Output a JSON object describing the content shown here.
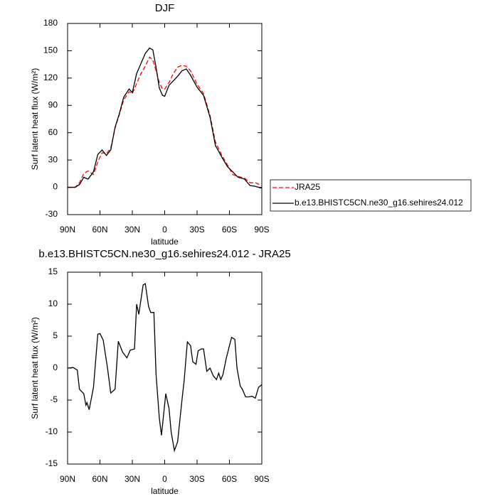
{
  "chart_data": [
    {
      "type": "line",
      "title": "DJF",
      "x_label": "latitude",
      "y_label": "Surf latent heat flux (W/m²)",
      "x": [
        90,
        83,
        79,
        75,
        71,
        66,
        62,
        58,
        54,
        50,
        46,
        42,
        38,
        33,
        30,
        26,
        22,
        18,
        14,
        11,
        8,
        5,
        2,
        0,
        -4,
        -8,
        -12,
        -16,
        -20,
        -24,
        -30,
        -36,
        -42,
        -47,
        -53,
        -58,
        -63,
        -68,
        -74,
        -79,
        -84,
        -90
      ],
      "xlim": [
        90,
        -90
      ],
      "xticks": [
        {
          "value": 90,
          "label": "90N"
        },
        {
          "value": 60,
          "label": "60N"
        },
        {
          "value": 30,
          "label": "30N"
        },
        0,
        {
          "value": -30,
          "label": "30S"
        },
        {
          "value": -60,
          "label": "60S"
        },
        {
          "value": -90,
          "label": "90S"
        }
      ],
      "ylim": [
        -30,
        180
      ],
      "yticks": [
        -30,
        0,
        30,
        60,
        90,
        120,
        150,
        180
      ],
      "legend": "outside-right",
      "series": [
        {
          "name": "JRA25",
          "color": "#ff0000",
          "dash": true,
          "values": [
            0,
            0,
            5,
            15,
            18,
            14,
            28,
            38,
            37,
            43,
            65,
            80,
            96,
            105,
            103,
            114,
            125,
            133,
            143,
            140,
            128,
            115,
            108,
            108,
            115,
            125,
            132,
            134,
            133,
            128,
            113,
            103,
            79,
            50,
            35,
            25,
            14,
            12,
            10,
            5,
            5,
            2
          ]
        },
        {
          "name": "b.e13.BHISTC5CN.ne30_g16.sehires24.012",
          "color": "#000000",
          "dash": false,
          "values": [
            0,
            0,
            3,
            11,
            9,
            17,
            36,
            41,
            35,
            41,
            66,
            81,
            99,
            108,
            104,
            125,
            136,
            147,
            153,
            151,
            132,
            109,
            101,
            100,
            112,
            117,
            122,
            128,
            130,
            123,
            110,
            101,
            77,
            46,
            33,
            23,
            17,
            11,
            9,
            2,
            1,
            -1
          ]
        }
      ]
    },
    {
      "type": "line",
      "title": "b.e13.BHISTC5CN.ne30_g16.sehires24.012 - JRA25",
      "x_label": "latitude",
      "y_label": "Surf latent heat flux (W/m²)",
      "x": [
        90,
        85,
        81,
        79,
        75,
        73,
        72,
        70,
        66,
        62,
        60,
        57,
        53,
        50,
        46,
        43,
        39,
        35,
        32,
        28,
        26,
        24,
        20,
        18,
        15,
        13,
        10,
        8,
        5,
        3,
        -1,
        -4,
        -6,
        -9,
        -12,
        -16,
        -18,
        -21,
        -24,
        -26,
        -29,
        -31,
        -34,
        -36,
        -39,
        -42,
        -45,
        -48,
        -50,
        -52,
        -54,
        -57,
        -60,
        -62,
        -65,
        -67,
        -70,
        -72,
        -75,
        -78,
        -81,
        -84,
        -87,
        -90
      ],
      "xlim": [
        90,
        -90
      ],
      "xticks": [
        {
          "value": 90,
          "label": "90N"
        },
        {
          "value": 60,
          "label": "60N"
        },
        {
          "value": 30,
          "label": "30N"
        },
        0,
        {
          "value": -30,
          "label": "30S"
        },
        {
          "value": -60,
          "label": "60S"
        },
        {
          "value": -90,
          "label": "90S"
        }
      ],
      "ylim": [
        -15,
        15
      ],
      "yticks": [
        -15,
        -10,
        -5,
        0,
        5,
        10,
        15
      ],
      "series": [
        {
          "color": "#000000",
          "dash": false,
          "values": [
            0,
            0.1,
            -0.3,
            -3.3,
            -4,
            -5.8,
            -5.4,
            -6.5,
            -3,
            5.3,
            5.4,
            4.4,
            0,
            -3.9,
            -3.3,
            4.2,
            2.5,
            1.6,
            2.8,
            3,
            10,
            8.4,
            13,
            13.2,
            9.7,
            8.7,
            8.7,
            -1,
            -7.8,
            -10.5,
            -4,
            -6.3,
            -10,
            -12.9,
            -11.5,
            -5,
            -2,
            4.1,
            3.5,
            1,
            0.6,
            2.7,
            3,
            3,
            -0.5,
            0,
            -1.2,
            -1.8,
            -0.8,
            -1.8,
            -1,
            1.5,
            3.5,
            4.8,
            4.5,
            0,
            -2.8,
            -3.3,
            -4.5,
            -4.5,
            -4.4,
            -4.7,
            -3,
            -2.6
          ]
        }
      ]
    }
  ]
}
